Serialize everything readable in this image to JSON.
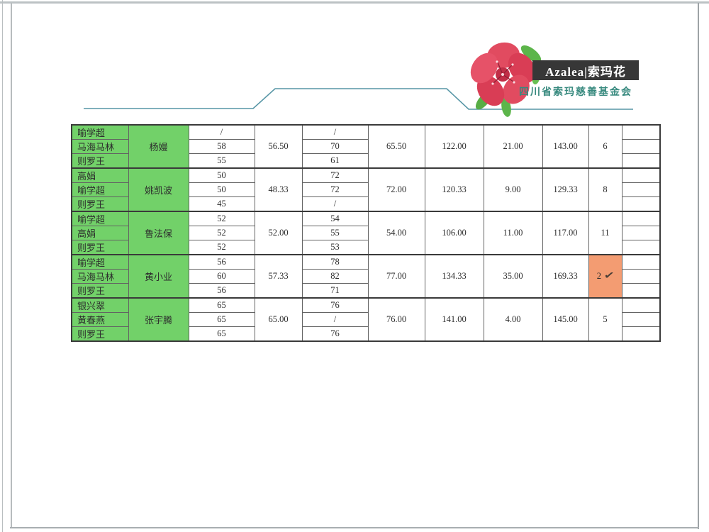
{
  "document": {
    "logo": {
      "brand": "Azalea|索玛花",
      "organization": "四川省索玛慈善基金会"
    },
    "colors": {
      "highlight_green": "#72d169",
      "highlight_orange": "#f39c72",
      "divider_teal": "#5796a6",
      "banner_background": "#373737",
      "organization_text": "#37897e",
      "flower_red": "#e14b60",
      "leaf_green": "#5cb54a"
    },
    "table": {
      "groups": [
        {
          "teacher": "杨嫚",
          "students": [
            {
              "name": "喻学超",
              "score1": "/",
              "score2": "/"
            },
            {
              "name": "马海马林",
              "score1": "58",
              "score2": "70"
            },
            {
              "name": "则罗王",
              "score1": "55",
              "score2": "61"
            }
          ],
          "avg1": "56.50",
          "avg2": "65.50",
          "sum_of_avgs": "122.00",
          "bonus": "21.00",
          "final_total": "143.00",
          "rank": "6",
          "rank_highlighted": false,
          "rank_check": ""
        },
        {
          "teacher": "姚凯波",
          "students": [
            {
              "name": "高娟",
              "score1": "50",
              "score2": "72"
            },
            {
              "name": "喻学超",
              "score1": "50",
              "score2": "72"
            },
            {
              "name": "则罗王",
              "score1": "45",
              "score2": "/"
            }
          ],
          "avg1": "48.33",
          "avg2": "72.00",
          "sum_of_avgs": "120.33",
          "bonus": "9.00",
          "final_total": "129.33",
          "rank": "8",
          "rank_highlighted": false,
          "rank_check": ""
        },
        {
          "teacher": "鲁法保",
          "students": [
            {
              "name": "喻学超",
              "score1": "52",
              "score2": "54"
            },
            {
              "name": "高娟",
              "score1": "52",
              "score2": "55"
            },
            {
              "name": "则罗王",
              "score1": "52",
              "score2": "53"
            }
          ],
          "avg1": "52.00",
          "avg2": "54.00",
          "sum_of_avgs": "106.00",
          "bonus": "11.00",
          "final_total": "117.00",
          "rank": "11",
          "rank_highlighted": false,
          "rank_check": ""
        },
        {
          "teacher": "黄小业",
          "students": [
            {
              "name": "喻学超",
              "score1": "56",
              "score2": "78"
            },
            {
              "name": "马海马林",
              "score1": "60",
              "score2": "82"
            },
            {
              "name": "则罗王",
              "score1": "56",
              "score2": "71"
            }
          ],
          "avg1": "57.33",
          "avg2": "77.00",
          "sum_of_avgs": "134.33",
          "bonus": "35.00",
          "final_total": "169.33",
          "rank": "2",
          "rank_highlighted": true,
          "rank_check": "✓"
        },
        {
          "teacher": "张宇腾",
          "students": [
            {
              "name": "银兴翠",
              "score1": "65",
              "score2": "76"
            },
            {
              "name": "黄春燕",
              "score1": "65",
              "score2": "/"
            },
            {
              "name": "则罗王",
              "score1": "65",
              "score2": "76"
            }
          ],
          "avg1": "65.00",
          "avg2": "76.00",
          "sum_of_avgs": "141.00",
          "bonus": "4.00",
          "final_total": "145.00",
          "rank": "5",
          "rank_highlighted": false,
          "rank_check": ""
        }
      ]
    }
  }
}
